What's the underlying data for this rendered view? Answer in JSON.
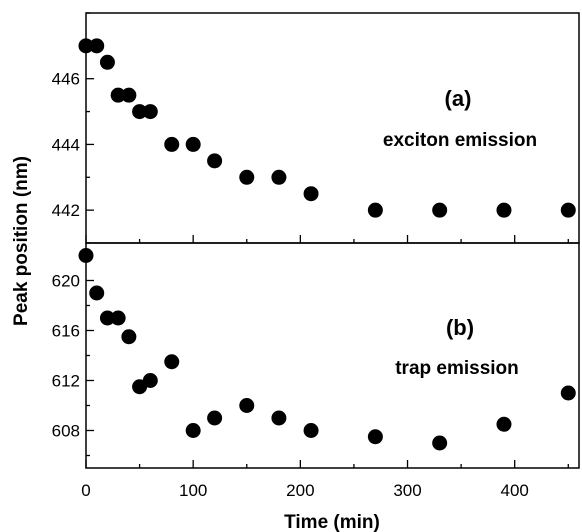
{
  "chart_data": [
    {
      "type": "scatter",
      "panel_label": "(a)",
      "annotation": "exciton emission",
      "x": [
        0,
        10,
        20,
        30,
        40,
        50,
        60,
        80,
        100,
        120,
        150,
        180,
        210,
        270,
        330,
        390,
        450
      ],
      "y": [
        447,
        447,
        446.5,
        445.5,
        445.5,
        445,
        445,
        444,
        444,
        443.5,
        443,
        443,
        442.5,
        442,
        442,
        442,
        442
      ],
      "ylim": [
        441,
        448
      ],
      "yticks": [
        442,
        444,
        446
      ],
      "xlim": [
        0,
        460
      ],
      "marker_color": "#000000"
    },
    {
      "type": "scatter",
      "panel_label": "(b)",
      "annotation": "trap emission",
      "x": [
        0,
        10,
        20,
        30,
        40,
        50,
        60,
        80,
        100,
        120,
        150,
        180,
        210,
        270,
        330,
        390,
        450
      ],
      "y": [
        622,
        619,
        617,
        617,
        615.5,
        611.5,
        612,
        613.5,
        608,
        609,
        610,
        609,
        608,
        607.5,
        607,
        608.5,
        611
      ],
      "ylim": [
        605,
        623
      ],
      "yticks": [
        608,
        612,
        616,
        620
      ],
      "xlim": [
        0,
        460
      ],
      "marker_color": "#000000"
    }
  ],
  "xaxis": {
    "label": "Time (min)",
    "ticks": [
      0,
      100,
      200,
      300,
      400
    ]
  },
  "yaxis": {
    "label": "Peak position (nm)"
  }
}
